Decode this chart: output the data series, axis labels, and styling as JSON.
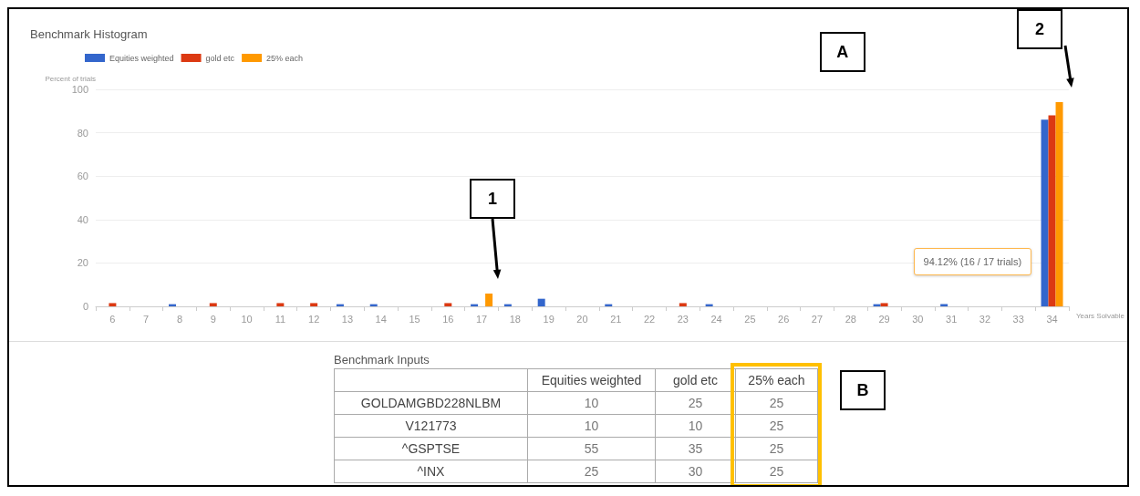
{
  "chart_data": [
    {
      "type": "bar",
      "title": "Benchmark Histogram",
      "ylabel": "Percent of trials",
      "xlabel": "Years Solvable",
      "categories": [
        "6",
        "7",
        "8",
        "9",
        "10",
        "11",
        "12",
        "13",
        "14",
        "15",
        "16",
        "17",
        "18",
        "19",
        "20",
        "21",
        "22",
        "23",
        "24",
        "25",
        "26",
        "27",
        "28",
        "29",
        "30",
        "31",
        "32",
        "33",
        "34"
      ],
      "series": [
        {
          "name": "Equities weighted",
          "color": "#3366cc",
          "values": [
            0,
            0,
            1,
            0,
            0,
            0,
            0,
            1,
            1,
            0,
            0,
            1,
            1,
            3.5,
            0,
            1,
            0,
            0,
            1,
            0,
            0,
            0,
            0,
            1,
            0,
            1,
            0,
            0,
            86
          ]
        },
        {
          "name": "gold etc",
          "color": "#dc3912",
          "values": [
            1.5,
            0,
            0,
            1.5,
            0,
            1.5,
            1.5,
            0,
            0,
            0,
            1.5,
            0,
            0,
            0,
            0,
            0,
            0,
            1.5,
            0,
            0,
            0,
            0,
            0,
            1.5,
            0,
            0,
            0,
            0,
            88
          ]
        },
        {
          "name": "25% each",
          "color": "#ff9900",
          "values": [
            0,
            0,
            0,
            0,
            0,
            0,
            0,
            0,
            0,
            0,
            0,
            5.9,
            0,
            0,
            0,
            0,
            0,
            0,
            0,
            0,
            0,
            0,
            0,
            0,
            0,
            0,
            0,
            0,
            94.12
          ]
        }
      ],
      "ylim": [
        0,
        100
      ],
      "yticks": [
        0,
        20,
        40,
        60,
        80,
        100
      ],
      "grid": "y",
      "legend": "top left",
      "annotations": [
        "A",
        "94.12% (16 / 17 trials)",
        "1",
        "2"
      ]
    },
    {
      "type": "other",
      "title": "Benchmark Inputs",
      "categories": [
        null,
        "Equities weighted",
        "gold etc",
        "25% each"
      ],
      "y_categories": [
        "GOLDAMGBD228NLBM",
        "V121773",
        "^GSPTSE",
        "^INX"
      ],
      "cell_labels": [
        [
          "10",
          "25",
          "25"
        ],
        [
          "10",
          "10",
          "25"
        ],
        [
          "55",
          "35",
          "25"
        ],
        [
          "25",
          "30",
          "25"
        ]
      ],
      "annotations": [
        "B"
      ]
    }
  ]
}
